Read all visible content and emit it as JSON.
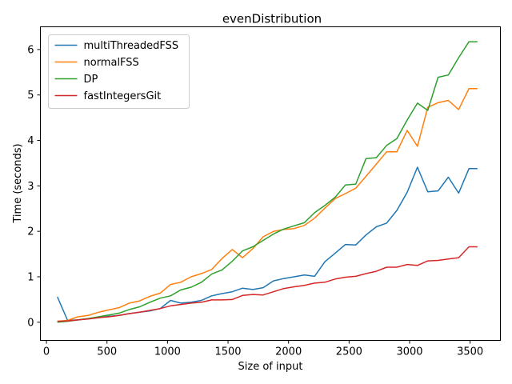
{
  "chart_data": {
    "type": "line",
    "title": "evenDistribution",
    "xlabel": "Size of input",
    "ylabel": "Time (seconds)",
    "xlim": [
      -50,
      3750
    ],
    "ylim": [
      -0.4,
      6.5
    ],
    "xticks": [
      0,
      500,
      1000,
      1500,
      2000,
      2500,
      3000,
      3500
    ],
    "yticks": [
      0,
      1,
      2,
      3,
      4,
      5,
      6
    ],
    "grid": false,
    "legend": "top-left",
    "x": [
      90,
      175,
      260,
      345,
      430,
      515,
      600,
      685,
      770,
      855,
      940,
      1025,
      1110,
      1195,
      1280,
      1365,
      1450,
      1535,
      1620,
      1705,
      1790,
      1875,
      1960,
      2045,
      2130,
      2215,
      2300,
      2385,
      2470,
      2555,
      2640,
      2725,
      2810,
      2895,
      2980,
      3065,
      3150,
      3235,
      3320,
      3405,
      3490,
      3560
    ],
    "series": [
      {
        "name": "multiThreadedFSS",
        "color": "#1f77b4",
        "values": [
          0.56,
          0.04,
          0.05,
          0.08,
          0.1,
          0.13,
          0.15,
          0.19,
          0.22,
          0.25,
          0.3,
          0.48,
          0.42,
          0.44,
          0.48,
          0.58,
          0.63,
          0.67,
          0.75,
          0.72,
          0.76,
          0.91,
          0.96,
          1.0,
          1.04,
          1.01,
          1.33,
          1.52,
          1.71,
          1.7,
          1.92,
          2.1,
          2.18,
          2.46,
          2.86,
          3.41,
          2.87,
          2.89,
          3.19,
          2.84,
          3.38,
          3.38
        ]
      },
      {
        "name": "normalFSS",
        "color": "#ff7f0e",
        "values": [
          0.02,
          0.04,
          0.12,
          0.15,
          0.22,
          0.27,
          0.32,
          0.42,
          0.47,
          0.57,
          0.64,
          0.83,
          0.88,
          1.0,
          1.07,
          1.16,
          1.4,
          1.6,
          1.42,
          1.62,
          1.88,
          2.0,
          2.04,
          2.06,
          2.13,
          2.29,
          2.51,
          2.72,
          2.83,
          2.95,
          3.21,
          3.48,
          3.75,
          3.75,
          4.22,
          3.87,
          4.73,
          4.83,
          4.88,
          4.68,
          5.14,
          5.14
        ]
      },
      {
        "name": "DP",
        "color": "#2ca02c",
        "values": [
          0.0,
          0.02,
          0.05,
          0.08,
          0.12,
          0.16,
          0.2,
          0.28,
          0.34,
          0.44,
          0.53,
          0.58,
          0.71,
          0.77,
          0.88,
          1.06,
          1.15,
          1.34,
          1.57,
          1.66,
          1.8,
          1.94,
          2.05,
          2.12,
          2.19,
          2.41,
          2.57,
          2.75,
          3.02,
          3.04,
          3.6,
          3.62,
          3.89,
          4.04,
          4.45,
          4.82,
          4.66,
          5.39,
          5.44,
          5.82,
          6.17,
          6.17
        ]
      },
      {
        "name": "fastIntegersGit",
        "color": "#d62728",
        "values": [
          0.02,
          0.03,
          0.05,
          0.07,
          0.1,
          0.12,
          0.15,
          0.19,
          0.22,
          0.26,
          0.3,
          0.36,
          0.39,
          0.42,
          0.44,
          0.49,
          0.49,
          0.5,
          0.59,
          0.61,
          0.6,
          0.67,
          0.74,
          0.78,
          0.81,
          0.86,
          0.88,
          0.95,
          0.99,
          1.01,
          1.07,
          1.12,
          1.21,
          1.21,
          1.27,
          1.25,
          1.35,
          1.36,
          1.39,
          1.42,
          1.66,
          1.66
        ]
      }
    ]
  }
}
